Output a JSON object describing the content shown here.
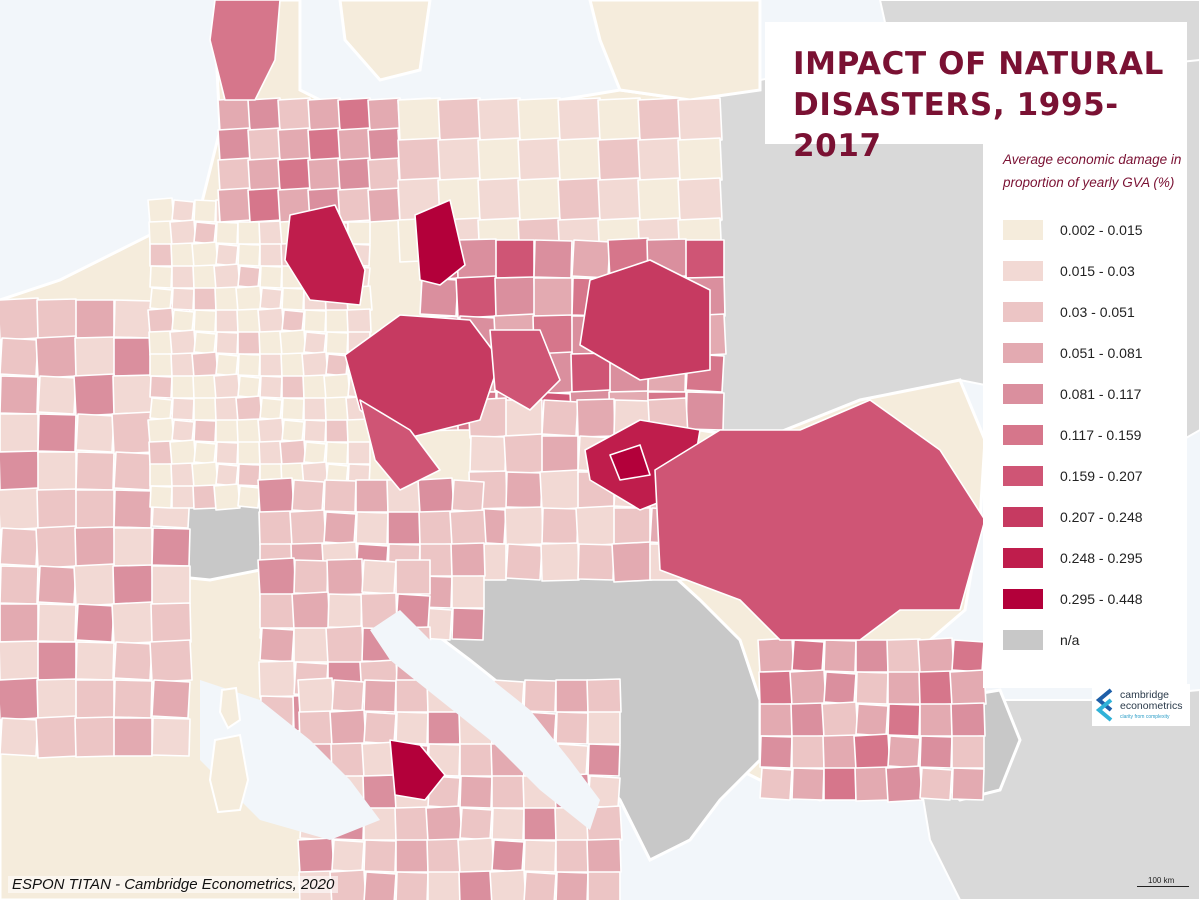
{
  "title": {
    "line1": "IMPACT OF NATURAL",
    "line2": "DISASTERS, 1995-2017"
  },
  "legend": {
    "caption": "Average economic damage in proportion of yearly GVA (%)",
    "classes": [
      {
        "label": "0.002 - 0.015",
        "color": "#f5ecdc"
      },
      {
        "label": "0.015 - 0.03",
        "color": "#f2d9d4"
      },
      {
        "label": "0.03 - 0.051",
        "color": "#ecc5c5"
      },
      {
        "label": "0.051 - 0.081",
        "color": "#e3aab1"
      },
      {
        "label": "0.081 - 0.117",
        "color": "#da8f9e"
      },
      {
        "label": "0.117 - 0.159",
        "color": "#d6768b"
      },
      {
        "label": "0.159 - 0.207",
        "color": "#cf5575"
      },
      {
        "label": "0.207 - 0.248",
        "color": "#c63a61"
      },
      {
        "label": "0.248 - 0.295",
        "color": "#bf1d4c"
      },
      {
        "label": "0.295 - 0.448",
        "color": "#b3003a"
      },
      {
        "label": "n/a",
        "color": "#c8c8c8"
      }
    ]
  },
  "logo": {
    "name_line1": "cambridge",
    "name_line2": "econometrics",
    "tagline": "clarity from complexity"
  },
  "source_note": "ESPON TITAN - Cambridge Econometrics, 2020",
  "scale_label": "100 km",
  "colors": {
    "water": "#f2f6fa",
    "non_eu_land": "#d9d9d9",
    "title": "#7a1133"
  }
}
